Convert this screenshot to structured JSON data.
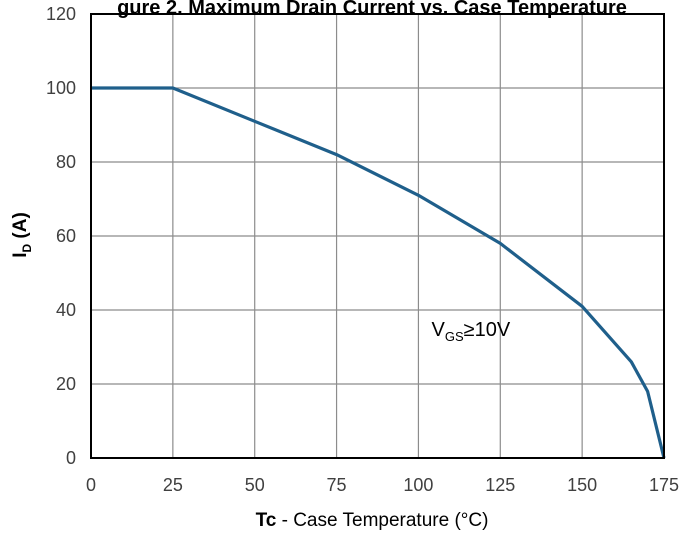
{
  "chart_data": {
    "type": "line",
    "title": "gure 2. Maximum Drain Current vs. Case Temperature",
    "xlabel_bold": "Tc",
    "xlabel_rest": " - Case Temperature (°C)",
    "ylabel_main": "I",
    "ylabel_sub": "D",
    "ylabel_unit": " (A)",
    "xlim": [
      0,
      175
    ],
    "ylim": [
      0,
      120
    ],
    "xticks": [
      0,
      25,
      50,
      75,
      100,
      125,
      150,
      175
    ],
    "yticks": [
      0,
      20,
      40,
      60,
      80,
      100,
      120
    ],
    "grid": true,
    "series": [
      {
        "color": "#1f5f8b",
        "x": [
          0,
          25,
          50,
          75,
          100,
          125,
          150,
          165,
          170,
          175
        ],
        "y": [
          100,
          100,
          91,
          82,
          71,
          58,
          41,
          26,
          18,
          0
        ]
      }
    ],
    "annotations": [
      {
        "main": "V",
        "sub": "GS",
        "rest": "≥10V",
        "x": 104,
        "y": 33
      }
    ]
  }
}
